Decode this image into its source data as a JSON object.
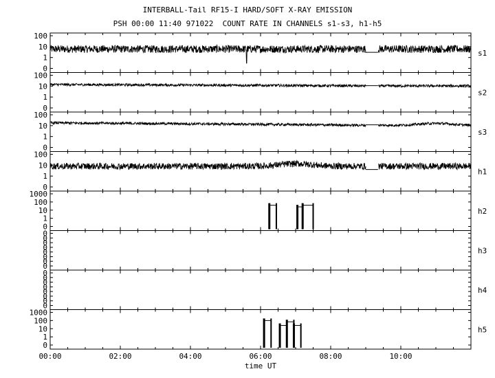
{
  "chart_data": {
    "type": "line",
    "title": "INTERBALL-Tail RF15-I HARD/SOFT X-RAY EMISSION",
    "subtitle": "PSH 00:00 11:40 971022  COUNT RATE IN CHANNELS s1-s3, h1-h5",
    "xlabel": "time UT",
    "x_ticks": [
      "00:00",
      "02:00",
      "04:00",
      "06:00",
      "08:00",
      "10:00"
    ],
    "x_range_hours": [
      0,
      12
    ],
    "y_scale": "log",
    "grid": false,
    "panels": [
      {
        "name": "s1",
        "y_ticks": [
          "100",
          "10",
          "1",
          "0"
        ],
        "baseline": 6,
        "noise": 0.35,
        "gap_hours": [
          9.0,
          9.35
        ],
        "gap_value": 3,
        "spikes": [
          {
            "hour": 5.6,
            "value": 0.3
          }
        ]
      },
      {
        "name": "s2",
        "y_ticks": [
          "100",
          "10",
          "1",
          "0"
        ],
        "baseline": 14,
        "noise": 0.12,
        "gap_hours": [
          9.0,
          9.35
        ],
        "gap_value": 11,
        "trend_end_factor": 0.75
      },
      {
        "name": "s3",
        "y_ticks": [
          "100",
          "10",
          "1",
          "0"
        ],
        "baseline": 18,
        "noise": 0.12,
        "gap_hours": [
          9.0,
          9.35
        ],
        "gap_value": 12,
        "trend_end_factor": 0.6,
        "bumps": [
          {
            "hour": 11.0,
            "factor": 1.5
          }
        ]
      },
      {
        "name": "h1",
        "y_ticks": [
          "100",
          "10",
          "1",
          "0"
        ],
        "baseline": 8,
        "noise": 0.3,
        "gap_hours": [
          9.0,
          9.35
        ],
        "gap_value": 4,
        "bumps": [
          {
            "hour": 7.0,
            "factor": 1.7
          }
        ]
      },
      {
        "name": "h2",
        "y_ticks": [
          "1000",
          "100",
          "10",
          "1",
          "0"
        ],
        "steps": [
          {
            "from": 6.25,
            "to": 6.45,
            "value": 40
          },
          {
            "from": 7.05,
            "to": 7.2,
            "value": 25
          },
          {
            "from": 7.2,
            "to": 7.5,
            "value": 40
          }
        ]
      },
      {
        "name": "h3",
        "y_ticks": [
          "0",
          "0",
          "0",
          "0",
          "0",
          "0",
          "0",
          "0"
        ]
      },
      {
        "name": "h4",
        "y_ticks": [
          "0",
          "0",
          "0",
          "0",
          "0",
          "0",
          "0",
          "0"
        ]
      },
      {
        "name": "h5",
        "y_ticks": [
          "1000",
          "100",
          "10",
          "1",
          "0"
        ],
        "steps": [
          {
            "from": 6.1,
            "to": 6.3,
            "value": 100
          },
          {
            "from": 6.55,
            "to": 6.75,
            "value": 25
          },
          {
            "from": 6.75,
            "to": 6.95,
            "value": 70
          },
          {
            "from": 6.95,
            "to": 7.15,
            "value": 25
          }
        ]
      }
    ]
  }
}
